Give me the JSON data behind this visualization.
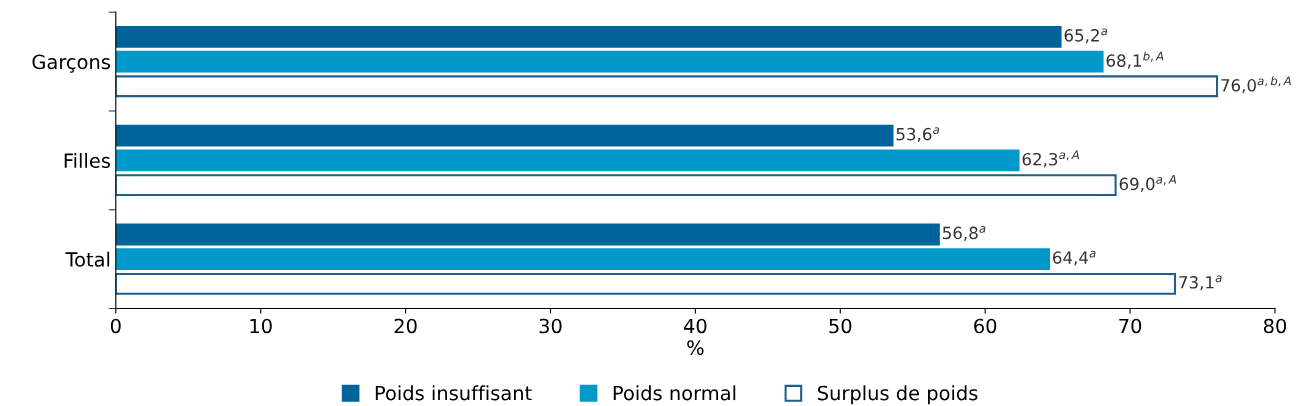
{
  "chart_data": {
    "type": "bar",
    "orientation": "horizontal",
    "categories": [
      "Garçons",
      "Filles",
      "Total"
    ],
    "series": [
      {
        "name": "Poids insuffisant",
        "color": "#00649a",
        "values": [
          65.2,
          53.6,
          56.8
        ],
        "value_labels": [
          "65,2$^{a}$",
          "53,6$^{a}$",
          "56,8$^{a}$"
        ]
      },
      {
        "name": "Poids normal",
        "color": "#0099c9",
        "values": [
          68.1,
          62.3,
          64.4
        ],
        "value_labels": [
          "68,1$^{b,A}$",
          "62,3$^{a,A}$",
          "64,4$^{a}$"
        ]
      },
      {
        "name": "Surplus de poids",
        "color": "#ffffff",
        "values": [
          76.0,
          69.0,
          73.1
        ],
        "value_labels": [
          "76,0$^{a,b,A}$",
          "69,0$^{a,A}$",
          "73,1$^{a}$"
        ]
      }
    ],
    "xlabel": "%",
    "xlim": [
      0,
      80
    ],
    "xticks": [
      0,
      10,
      20,
      30,
      40,
      50,
      60,
      70,
      80
    ],
    "grid": false,
    "legend": "bottom"
  }
}
